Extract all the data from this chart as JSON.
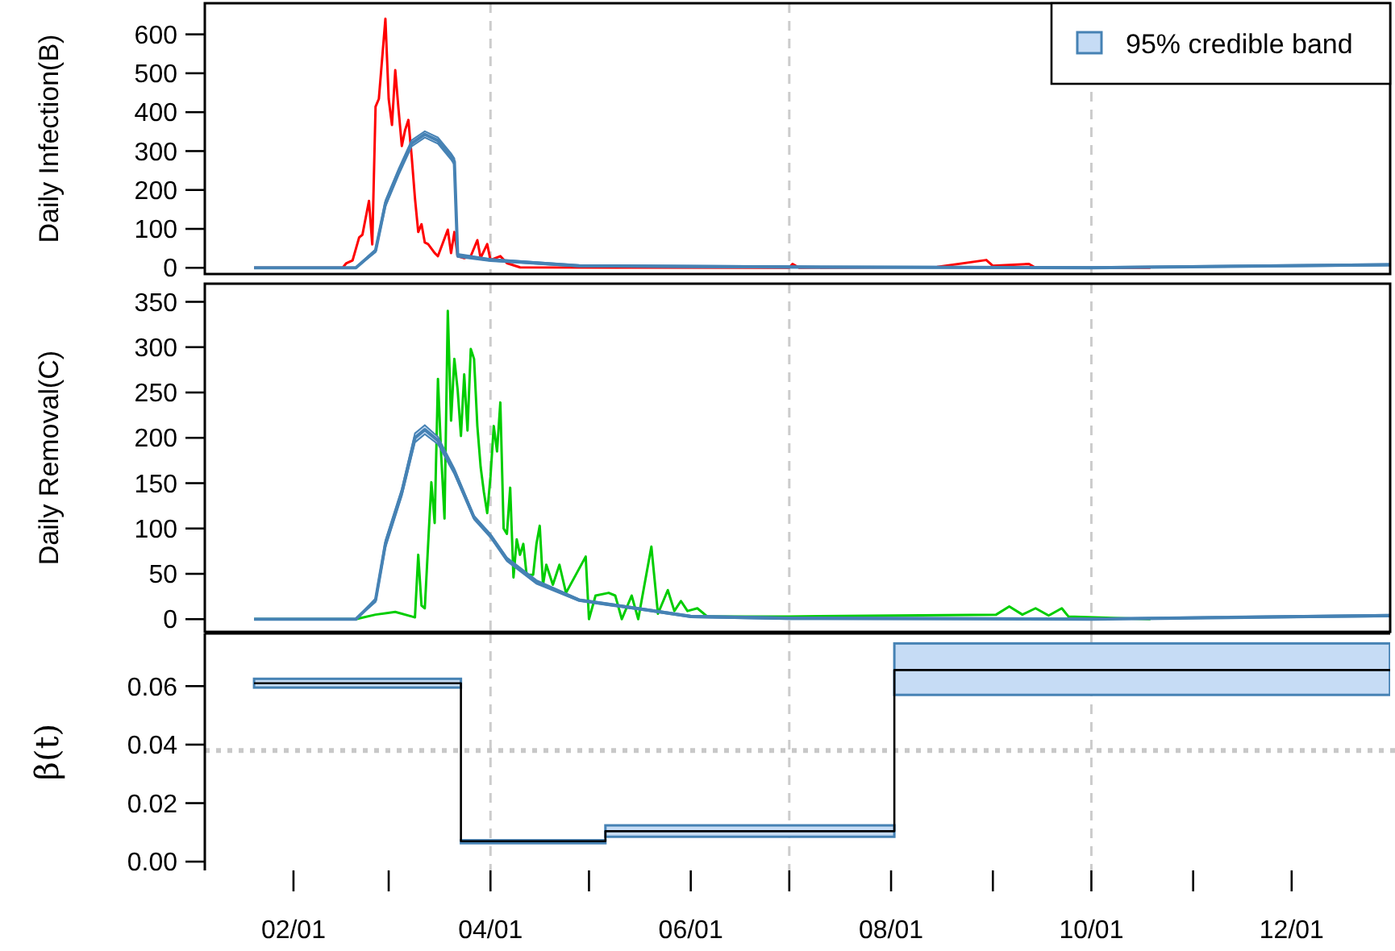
{
  "chart_data": [
    {
      "type": "line",
      "ylabel": "Daily Infection(B)",
      "xlim": [
        "--01-05",
        "--12-31"
      ],
      "ylim": [
        -16,
        680
      ],
      "yticks": [
        0,
        100,
        200,
        300,
        400,
        500,
        600
      ],
      "tick_labels": "y",
      "legend": "top right",
      "ref_lines": [
        {
          "axis": "x",
          "value": "--04-01",
          "color": "#cccccc",
          "line_style": "dashed"
        },
        {
          "axis": "x",
          "value": "--07-01",
          "color": "#cccccc",
          "line_style": "dashed"
        },
        {
          "axis": "x",
          "value": "--10-01",
          "color": "#cccccc",
          "line_style": "dashed"
        }
      ],
      "series": [
        {
          "color": "#ff0000",
          "x": [
            "--01-20",
            "--02-16",
            "--02-17",
            "--02-19",
            "--02-21",
            "--02-22",
            "--02-24",
            "--02-25",
            "--02-26",
            "--02-27",
            "--02-29",
            "--03-01",
            "--03-02",
            "--03-03",
            "--03-04",
            "--03-05",
            "--03-06",
            "--03-07",
            "--03-08",
            "--03-09",
            "--03-10",
            "--03-11",
            "--03-12",
            "--03-13",
            "--03-15",
            "--03-16",
            "--03-19",
            "--03-20",
            "--03-21",
            "--03-22",
            "--03-24",
            "--03-26",
            "--03-28",
            "--03-29",
            "--03-31",
            "--04-01",
            "--04-04",
            "--04-06",
            "--04-10",
            "--07-01",
            "--07-02",
            "--07-04",
            "--08-15",
            "--08-30",
            "--09-01",
            "--09-12",
            "--09-14",
            "--10-19"
          ],
          "values": [
            0,
            0,
            11,
            19,
            78,
            85,
            172,
            60,
            414,
            434,
            640,
            434,
            367,
            508,
            407,
            313,
            354,
            380,
            286,
            179,
            92,
            112,
            65,
            61,
            38,
            30,
            98,
            38,
            92,
            30,
            25,
            30,
            71,
            25,
            61,
            20,
            30,
            12,
            1,
            0,
            10,
            0,
            2,
            20,
            5,
            10,
            0,
            0
          ]
        },
        {
          "name": "95% credible band",
          "color": "#4682b4",
          "x": [
            "--01-20",
            "--02-20",
            "--02-26",
            "--02-29",
            "--03-04",
            "--03-08",
            "--03-12",
            "--03-16",
            "--03-20",
            "--03-21",
            "--03-22",
            "--04-01",
            "--04-28",
            "--07-01",
            "--10-01",
            "--12-31"
          ],
          "values": [
            0,
            0,
            44,
            165,
            246,
            320,
            343,
            327,
            286,
            273,
            32,
            20,
            5,
            2,
            0,
            8
          ],
          "lower": [
            0,
            0,
            40,
            157,
            238,
            312,
            335,
            319,
            278,
            265,
            28,
            17,
            3,
            0,
            0,
            6
          ],
          "upper": [
            0,
            0,
            48,
            173,
            254,
            328,
            351,
            335,
            294,
            281,
            36,
            23,
            7,
            4,
            2,
            10
          ]
        }
      ]
    },
    {
      "type": "line",
      "ylabel": "Daily Removal(C)",
      "xlim": [
        "--01-05",
        "--12-31"
      ],
      "ylim": [
        -14,
        370
      ],
      "yticks": [
        0,
        50,
        100,
        150,
        200,
        250,
        300,
        350
      ],
      "tick_labels": "y",
      "ref_lines": [
        {
          "axis": "x",
          "value": "--04-01",
          "color": "#cccccc",
          "line_style": "dashed"
        },
        {
          "axis": "x",
          "value": "--07-01",
          "color": "#cccccc",
          "line_style": "dashed"
        },
        {
          "axis": "x",
          "value": "--10-01",
          "color": "#cccccc",
          "line_style": "dashed"
        }
      ],
      "series": [
        {
          "color": "#00cd00",
          "x": [
            "--01-20",
            "--02-20",
            "--02-26",
            "--03-03",
            "--03-08",
            "--03-09",
            "--03-10",
            "--03-11",
            "--03-12",
            "--03-14",
            "--03-15",
            "--03-16",
            "--03-17",
            "--03-18",
            "--03-19",
            "--03-20",
            "--03-21",
            "--03-22",
            "--03-23",
            "--03-24",
            "--03-25",
            "--03-26",
            "--03-27",
            "--03-28",
            "--03-29",
            "--03-30",
            "--03-31",
            "--04-01",
            "--04-02",
            "--04-03",
            "--04-04",
            "--04-05",
            "--04-06",
            "--04-07",
            "--04-08",
            "--04-09",
            "--04-10",
            "--04-11",
            "--04-12",
            "--04-14",
            "--04-15",
            "--04-16",
            "--04-17",
            "--04-18",
            "--04-20",
            "--04-22",
            "--04-24",
            "--04-27",
            "--04-30",
            "--05-01",
            "--05-03",
            "--05-07",
            "--05-09",
            "--05-11",
            "--05-14",
            "--05-16",
            "--05-20",
            "--05-22",
            "--05-25",
            "--05-27",
            "--05-29",
            "--05-31",
            "--06-03",
            "--06-06",
            "--07-01",
            "--09-02",
            "--09-06",
            "--09-10",
            "--09-14",
            "--09-18",
            "--09-22",
            "--09-24",
            "--10-19"
          ],
          "values": [
            0,
            0,
            5,
            8,
            3,
            2,
            71,
            15,
            12,
            151,
            106,
            265,
            180,
            111,
            340,
            219,
            287,
            253,
            202,
            270,
            208,
            298,
            287,
            213,
            168,
            140,
            117,
            157,
            213,
            185,
            239,
            100,
            94,
            145,
            46,
            88,
            71,
            83,
            49,
            49,
            83,
            103,
            38,
            60,
            38,
            60,
            29,
            49,
            69,
            0,
            26,
            29,
            26,
            0,
            26,
            0,
            80,
            6,
            32,
            9,
            20,
            9,
            12,
            3,
            3,
            5,
            14,
            5,
            12,
            4,
            12,
            3,
            0
          ]
        },
        {
          "color": "#4682b4",
          "x": [
            "--01-20",
            "--02-20",
            "--02-26",
            "--02-29",
            "--03-05",
            "--03-09",
            "--03-12",
            "--03-16",
            "--03-21",
            "--03-27",
            "--04-01",
            "--04-06",
            "--04-15",
            "--04-28",
            "--05-19",
            "--06-01",
            "--07-01",
            "--10-01",
            "--12-31"
          ],
          "values": [
            0,
            0,
            21,
            83,
            140,
            200,
            209,
            197,
            163,
            112,
            92,
            66,
            41,
            21,
            10,
            3,
            1,
            0,
            4
          ],
          "lower": [
            0,
            0,
            19,
            79,
            136,
            195,
            204,
            193,
            160,
            110,
            90,
            64,
            39,
            20,
            9,
            2,
            0,
            0,
            3
          ],
          "upper": [
            0,
            0,
            23,
            87,
            144,
            205,
            214,
            201,
            166,
            114,
            94,
            68,
            43,
            22,
            11,
            4,
            2,
            1,
            5
          ]
        }
      ]
    },
    {
      "type": "step",
      "ylabel": "β(t)",
      "xlim": [
        "--01-05",
        "--12-31"
      ],
      "ylim": [
        -0.003,
        0.078
      ],
      "yticks": [
        {
          "value": 0,
          "label": "0.00"
        },
        {
          "value": 0.02,
          "label": "0.02"
        },
        {
          "value": 0.04,
          "label": "0.04"
        },
        {
          "value": 0.06,
          "label": "0.06"
        }
      ],
      "xticks": [
        {
          "value": "--02-01",
          "label": "02/01"
        },
        {
          "value": "--03-01",
          "label": null
        },
        {
          "value": "--04-01",
          "label": "04/01"
        },
        {
          "value": "--05-01",
          "label": null
        },
        {
          "value": "--06-01",
          "label": "06/01"
        },
        {
          "value": "--07-01",
          "label": null
        },
        {
          "value": "--08-01",
          "label": "08/01"
        },
        {
          "value": "--09-01",
          "label": null
        },
        {
          "value": "--10-01",
          "label": "10/01"
        },
        {
          "value": "--11-01",
          "label": null
        },
        {
          "value": "--12-01",
          "label": "12/01"
        }
      ],
      "ref_lines": [
        {
          "axis": "x",
          "value": "--04-01",
          "color": "#cccccc",
          "line_style": "dashed"
        },
        {
          "axis": "x",
          "value": "--07-01",
          "color": "#cccccc",
          "line_style": "dashed"
        },
        {
          "axis": "x",
          "value": "--10-01",
          "color": "#cccccc",
          "line_style": "dashed"
        },
        {
          "axis": "y",
          "value": 0.038,
          "color": "#c8c8c8",
          "line_style": "dotted"
        }
      ],
      "series": [
        {
          "color": "#000000",
          "x": [
            "--01-20",
            "--03-23",
            "--05-06",
            "--08-02",
            "--12-31"
          ],
          "values": [
            0.061,
            0.007,
            0.0104,
            0.0655,
            0.0655
          ],
          "lower": [
            0.0595,
            0.0063,
            0.0085,
            0.057,
            0.057
          ],
          "upper": [
            0.0625,
            0.0073,
            0.0124,
            0.0746,
            0.0746
          ]
        }
      ]
    }
  ]
}
